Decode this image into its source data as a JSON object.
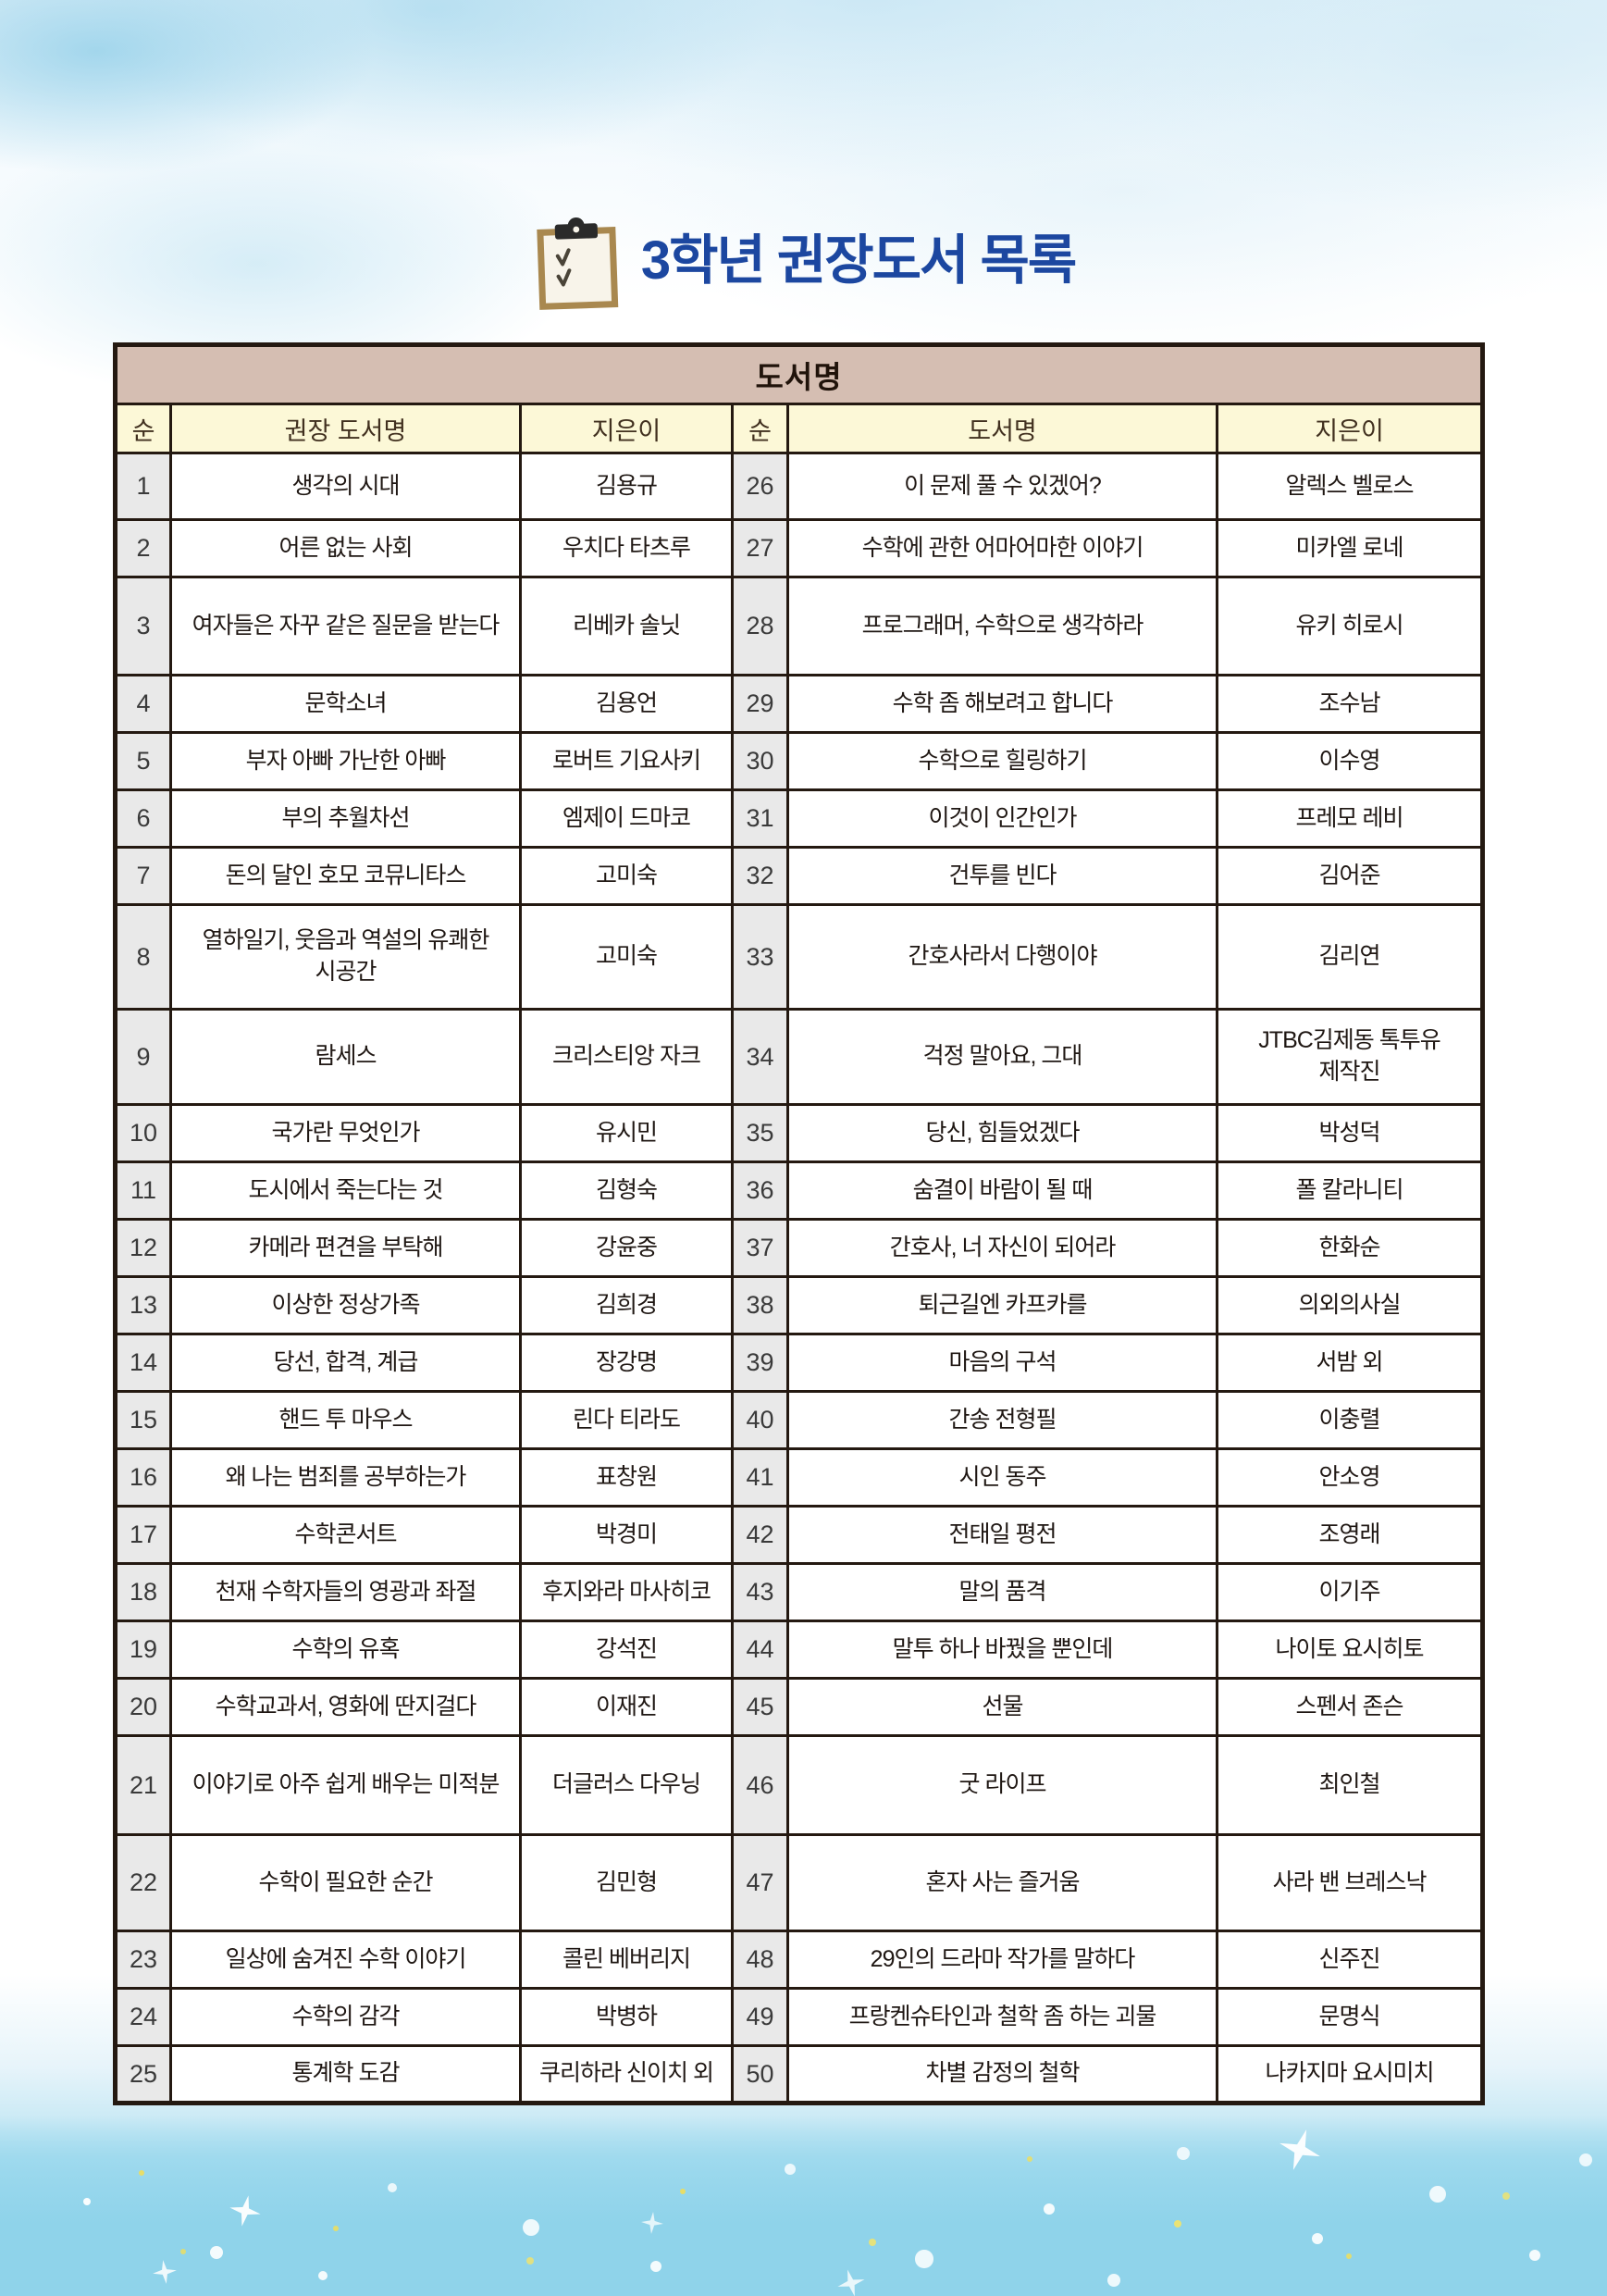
{
  "page": {
    "title": "3학년 권장도서 목록"
  },
  "icons": {
    "clipboard": "clipboard-with-checkmarks",
    "sparkle": "four-point-star"
  },
  "colors": {
    "title_blue": "#1c47a0",
    "band_bg": "#d5beb2",
    "header_bg": "#fcf8d7",
    "number_bg": "#e9e9e9",
    "border_dark": "#241911",
    "sky_top": "#cde9f5",
    "sky_bottom": "#8fd3ea"
  },
  "table": {
    "band_header": "도서명",
    "columns": [
      "순",
      "권장 도서명",
      "지은이",
      "순",
      "도서명",
      "지은이"
    ],
    "rows": [
      {
        "no1": "1",
        "title1": "생각의 시대",
        "author1": "김용규",
        "no2": "26",
        "title2": "이 문제 풀 수 있겠어?",
        "author2": "알렉스 벨로스"
      },
      {
        "no1": "2",
        "title1": "어른 없는 사회",
        "author1": "우치다 타츠루",
        "no2": "27",
        "title2": "수학에 관한 어마어마한 이야기",
        "author2": "미카엘 로네"
      },
      {
        "no1": "3",
        "title1": "여자들은 자꾸 같은 질문을 받는다",
        "author1": "리베카 솔닛",
        "no2": "28",
        "title2": "프로그래머, 수학으로 생각하라",
        "author2": "유키 히로시"
      },
      {
        "no1": "4",
        "title1": "문학소녀",
        "author1": "김용언",
        "no2": "29",
        "title2": "수학 좀 해보려고 합니다",
        "author2": "조수남"
      },
      {
        "no1": "5",
        "title1": "부자 아빠 가난한 아빠",
        "author1": "로버트 기요사키",
        "no2": "30",
        "title2": "수학으로 힐링하기",
        "author2": "이수영"
      },
      {
        "no1": "6",
        "title1": "부의 추월차선",
        "author1": "엠제이 드마코",
        "no2": "31",
        "title2": "이것이 인간인가",
        "author2": "프레모 레비"
      },
      {
        "no1": "7",
        "title1": "돈의 달인 호모 코뮤니타스",
        "author1": "고미숙",
        "no2": "32",
        "title2": "건투를 빈다",
        "author2": "김어준"
      },
      {
        "no1": "8",
        "title1": "열하일기, 웃음과 역설의 유쾌한 시공간",
        "author1": "고미숙",
        "no2": "33",
        "title2": "간호사라서 다행이야",
        "author2": "김리연"
      },
      {
        "no1": "9",
        "title1": "람세스",
        "author1": "크리스티앙 자크",
        "no2": "34",
        "title2": "걱정 말아요, 그대",
        "author2": "JTBC김제동 톡투유 제작진"
      },
      {
        "no1": "10",
        "title1": "국가란 무엇인가",
        "author1": "유시민",
        "no2": "35",
        "title2": "당신, 힘들었겠다",
        "author2": "박성덕"
      },
      {
        "no1": "11",
        "title1": "도시에서 죽는다는 것",
        "author1": "김형숙",
        "no2": "36",
        "title2": "숨결이 바람이 될 때",
        "author2": "폴 칼라니티"
      },
      {
        "no1": "12",
        "title1": "카메라 편견을 부탁해",
        "author1": "강윤중",
        "no2": "37",
        "title2": "간호사, 너 자신이 되어라",
        "author2": "한화순"
      },
      {
        "no1": "13",
        "title1": "이상한 정상가족",
        "author1": "김희경",
        "no2": "38",
        "title2": "퇴근길엔 카프카를",
        "author2": "의외의사실"
      },
      {
        "no1": "14",
        "title1": "당선, 합격, 계급",
        "author1": "장강명",
        "no2": "39",
        "title2": "마음의 구석",
        "author2": "서밤 외"
      },
      {
        "no1": "15",
        "title1": "핸드 투 마우스",
        "author1": "린다 티라도",
        "no2": "40",
        "title2": "간송 전형필",
        "author2": "이충렬"
      },
      {
        "no1": "16",
        "title1": "왜 나는 범죄를 공부하는가",
        "author1": "표창원",
        "no2": "41",
        "title2": "시인 동주",
        "author2": "안소영"
      },
      {
        "no1": "17",
        "title1": "수학콘서트",
        "author1": "박경미",
        "no2": "42",
        "title2": "전태일 평전",
        "author2": "조영래"
      },
      {
        "no1": "18",
        "title1": "천재 수학자들의 영광과 좌절",
        "author1": "후지와라 마사히코",
        "no2": "43",
        "title2": "말의 품격",
        "author2": "이기주"
      },
      {
        "no1": "19",
        "title1": "수학의 유혹",
        "author1": "강석진",
        "no2": "44",
        "title2": "말투 하나 바꿨을 뿐인데",
        "author2": "나이토 요시히토"
      },
      {
        "no1": "20",
        "title1": "수학교과서, 영화에 딴지걸다",
        "author1": "이재진",
        "no2": "45",
        "title2": "선물",
        "author2": "스펜서 존슨"
      },
      {
        "no1": "21",
        "title1": "이야기로 아주 쉽게 배우는 미적분",
        "author1": "더글러스 다우닝",
        "no2": "46",
        "title2": "굿 라이프",
        "author2": "최인철"
      },
      {
        "no1": "22",
        "title1": "수학이 필요한 순간",
        "author1": "김민형",
        "no2": "47",
        "title2": "혼자 사는 즐거움",
        "author2": "사라 밴 브레스낙"
      },
      {
        "no1": "23",
        "title1": "일상에 숨겨진 수학 이야기",
        "author1": "콜린 베버리지",
        "no2": "48",
        "title2": "29인의 드라마 작가를 말하다",
        "author2": "신주진"
      },
      {
        "no1": "24",
        "title1": "수학의 감각",
        "author1": "박병하",
        "no2": "49",
        "title2": "프랑켄슈타인과 철학 좀 하는 괴물",
        "author2": "문명식"
      },
      {
        "no1": "25",
        "title1": "통계학 도감",
        "author1": "쿠리하라 신이치 외",
        "no2": "50",
        "title2": "차별 감정의 철학",
        "author2": "나카지마 요시미치"
      }
    ]
  }
}
